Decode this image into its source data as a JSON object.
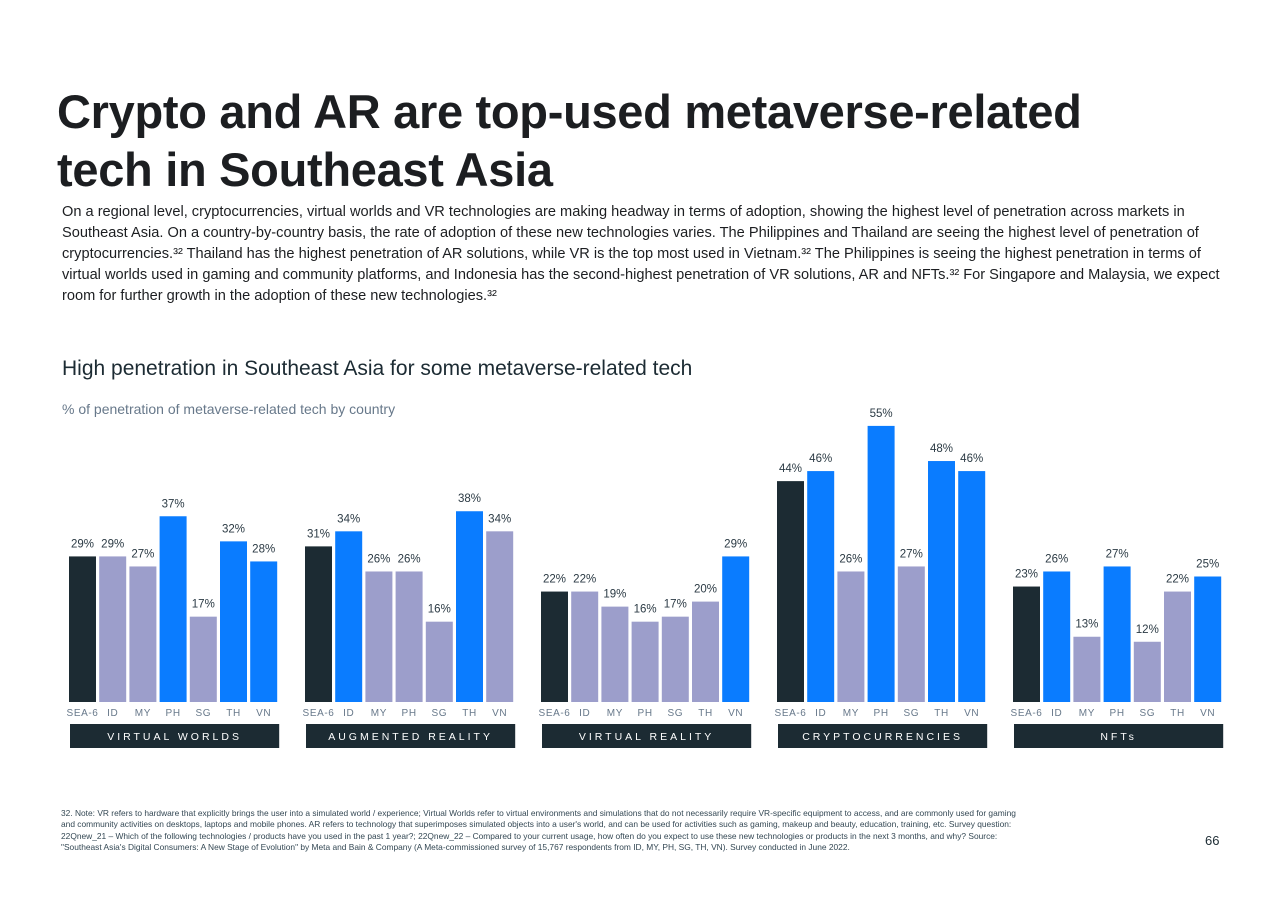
{
  "title_lines": [
    "Crypto and AR are top-used metaverse-related",
    "tech in Southeast Asia"
  ],
  "intro": "On a regional level, cryptocurrencies, virtual worlds and VR technologies are making headway in terms of adoption, showing the highest level of penetration across markets in Southeast Asia. On a country-by-country basis, the rate of adoption of these new technologies varies. The Philippines and Thailand are seeing the highest level of penetration of cryptocurrencies.³² Thailand has the highest penetration of AR solutions, while VR is the top most used in Vietnam.³²  The Philippines is seeing the highest penetration in terms of virtual worlds used in gaming and community platforms, and Indonesia has the second-highest penetration of VR solutions, AR and NFTs.³² For Singapore and Malaysia, we expect room for further growth in the adoption of these new technologies.³²",
  "chart_title": "High penetration in Southeast Asia for some metaverse-related tech",
  "chart_subtitle": "% of penetration of metaverse-related tech by country",
  "chart_data": {
    "type": "bar",
    "categories": [
      "SEA-6",
      "ID",
      "MY",
      "PH",
      "SG",
      "TH",
      "VN"
    ],
    "unit": "%",
    "ylim": [
      0,
      60
    ],
    "colors": {
      "regional": "#1c2b33",
      "highlight": "#0a7cff",
      "other": "#9c9ecb"
    },
    "groups": [
      {
        "name": "VIRTUAL WORLDS",
        "values": [
          29,
          29,
          27,
          37,
          17,
          32,
          28
        ],
        "highlight": [
          3,
          5,
          6
        ]
      },
      {
        "name": "AUGMENTED REALITY",
        "values": [
          31,
          34,
          26,
          26,
          16,
          38,
          34
        ],
        "highlight": [
          1,
          5
        ]
      },
      {
        "name": "VIRTUAL REALITY",
        "values": [
          22,
          22,
          19,
          16,
          17,
          20,
          29
        ],
        "highlight": [
          6
        ]
      },
      {
        "name": "CRYPTOCURRENCIES",
        "values": [
          44,
          46,
          26,
          55,
          27,
          48,
          46
        ],
        "highlight": [
          1,
          3,
          5,
          6
        ]
      },
      {
        "name": "NFTs",
        "values": [
          23,
          26,
          13,
          27,
          12,
          22,
          25
        ],
        "highlight": [
          1,
          3,
          6
        ]
      }
    ]
  },
  "footnote_lines": [
    "32. Note: VR refers to hardware that explicitly brings the user into a simulated world / experience; Virtual Worlds refer to virtual environments and simulations that do not necessarily require VR-specific equipment to access, and are commonly used for gaming",
    "and community activities on desktops, laptops and mobile phones. AR refers to technology that superimposes simulated objects into a user's world, and can be used for activities such as gaming, makeup and beauty, education, training, etc. Survey question:",
    "22Qnew_21 – Which of the following technologies / products have you used in the past 1 year?; 22Qnew_22 – Compared to your current usage, how often do you expect to use these new technologies or products in the next 3 months, and why? Source:",
    "\"Southeast Asia's Digital Consumers: A New Stage of Evolution\" by Meta and Bain & Company (A Meta-commissioned survey of 15,767 respondents from ID, MY, PH, SG, TH, VN). Survey conducted in June 2022."
  ],
  "page_number": "66"
}
